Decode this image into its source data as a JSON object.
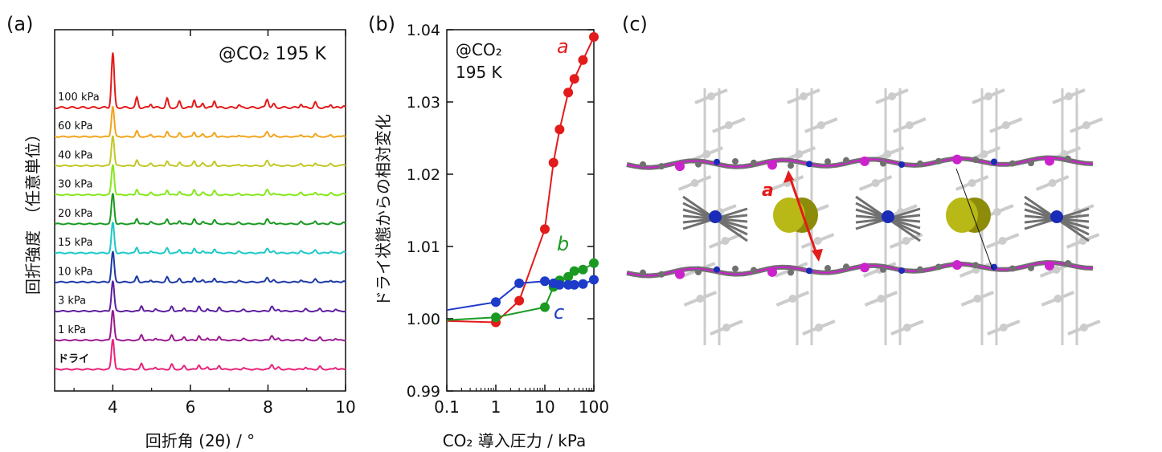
{
  "chart_data": [
    {
      "panel": "(a)",
      "type": "line",
      "title": "@CO2 195 K",
      "annotation": "@CO₂ 195 K",
      "xlabel": "回折角 (2θ) / °",
      "ylabel": "回折強度　（任意単位）",
      "xlim": [
        2.5,
        10
      ],
      "xticks": [
        4,
        6,
        8,
        10
      ],
      "grid": false,
      "legend": "inline labels",
      "series": [
        {
          "name": "ドライ",
          "color": "#e8247c"
        },
        {
          "name": "1 kPa",
          "color": "#9b1a8f"
        },
        {
          "name": "3 kPa",
          "color": "#5e1fa0"
        },
        {
          "name": "10 kPa",
          "color": "#1d3aa5"
        },
        {
          "name": "15 kPa",
          "color": "#1ec8c8"
        },
        {
          "name": "20 kPa",
          "color": "#1a9a22"
        },
        {
          "name": "30 kPa",
          "color": "#86e81e"
        },
        {
          "name": "40 kPa",
          "color": "#c2c825"
        },
        {
          "name": "60 kPa",
          "color": "#f2a51c"
        },
        {
          "name": "100 kPa",
          "color": "#e31b1b"
        }
      ]
    },
    {
      "panel": "(b)",
      "type": "line",
      "xscale": "log",
      "annotation_line1": "@CO₂",
      "annotation_line2": "195 K",
      "xlabel": "CO₂ 導入圧力 / kPa",
      "ylabel": "ドライ状態からの相対変化",
      "xlim": [
        0.1,
        100
      ],
      "ylim": [
        0.99,
        1.04
      ],
      "xticks": [
        "0.1",
        "1",
        "10",
        "100"
      ],
      "yticks": [
        "0.99",
        "1.00",
        "1.01",
        "1.02",
        "1.03",
        "1.04"
      ],
      "series": [
        {
          "name": "a",
          "color": "#e31b1b",
          "x": [
            1,
            3,
            10,
            15,
            20,
            30,
            40,
            60,
            100
          ],
          "y": [
            0.9995,
            1.0025,
            1.0124,
            1.0216,
            1.0262,
            1.0313,
            1.0332,
            1.0358,
            1.039
          ]
        },
        {
          "name": "b",
          "color": "#1a9a22",
          "x": [
            1,
            10,
            15,
            20,
            30,
            40,
            60,
            100
          ],
          "y": [
            1.0002,
            1.0016,
            1.0044,
            1.0053,
            1.0058,
            1.0066,
            1.0068,
            1.0077
          ]
        },
        {
          "name": "c",
          "color": "#1d3ac8",
          "x": [
            1,
            3,
            10,
            15,
            20,
            30,
            40,
            60,
            100
          ],
          "y": [
            1.0023,
            1.0049,
            1.0052,
            1.0049,
            1.0047,
            1.0047,
            1.0047,
            1.0048,
            1.0054
          ]
        }
      ]
    },
    {
      "panel": "(c)",
      "type": "diagram",
      "label": "a",
      "description": "crystal structure illustration"
    }
  ],
  "colors": {
    "arrow": "#e31b1b",
    "metal": "#cc22cc",
    "nitrogen": "#1a2bb8",
    "carbon": "#707070",
    "ghost": "#cccccc",
    "guest": "#b8b816"
  }
}
